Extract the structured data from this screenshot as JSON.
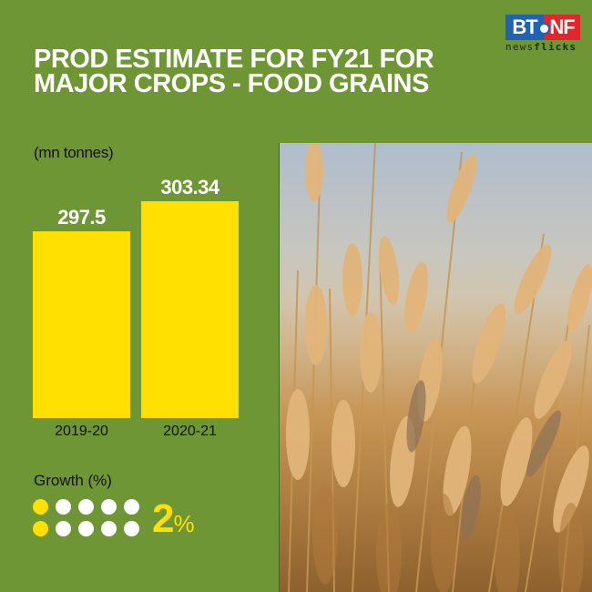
{
  "logo": {
    "left": "BT",
    "right": "NF",
    "subtitle_regular": "news",
    "subtitle_bold": "flicks",
    "colors": {
      "left_bg": "#1e63b4",
      "right_bg": "#e2262b"
    }
  },
  "title": "PROD ESTIMATE FOR FY21 FOR MAJOR CROPS - FOOD GRAINS",
  "unit_label": "(mn tonnes)",
  "bars": [
    {
      "label": "2019-20",
      "value": "297.5"
    },
    {
      "label": "2020-21",
      "value": "303.34"
    }
  ],
  "growth": {
    "label": "Growth (%)",
    "value": "2",
    "unit": "%",
    "dots_total": 10,
    "dots_filled": 2
  },
  "photo": {
    "subject": "wheat-field-image"
  },
  "colors": {
    "background": "#6f9634",
    "bar": "#ffe000",
    "accent": "#ffe000",
    "title": "#ffffff"
  },
  "chart_data": {
    "type": "bar",
    "title": "PROD ESTIMATE FOR FY21 FOR MAJOR CROPS - FOOD GRAINS",
    "categories": [
      "2019-20",
      "2020-21"
    ],
    "values": [
      297.5,
      303.34
    ],
    "xlabel": "",
    "ylabel": "(mn tonnes)",
    "data_labels": true,
    "grid": false,
    "legend": null,
    "annotations": [
      {
        "label": "Growth (%)",
        "value": 2,
        "display": "2%"
      }
    ]
  }
}
